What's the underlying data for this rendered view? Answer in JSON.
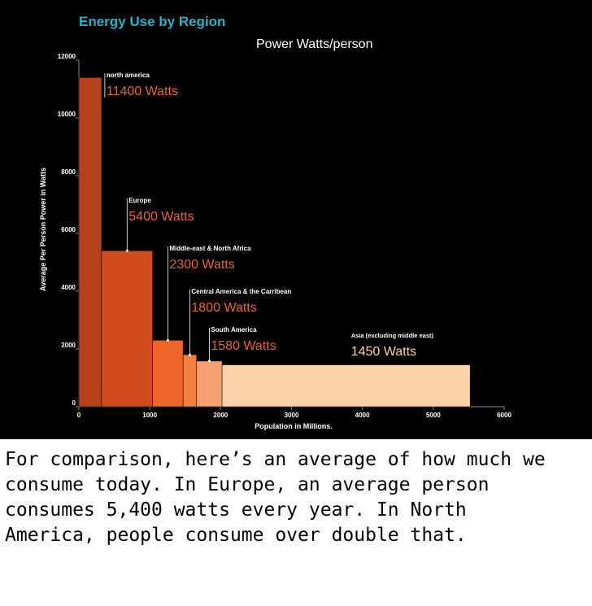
{
  "chart_data": {
    "type": "bar",
    "variant": "variable-width",
    "title": "Energy Use by Region",
    "subtitle": "Power Watts/person",
    "xlabel": "Population in Millions.",
    "ylabel": "Average Per Person Power in Watts",
    "xlim": [
      0,
      6000
    ],
    "ylim": [
      0,
      12000
    ],
    "xticks": [
      "0",
      "1000",
      "2000",
      "3000",
      "4000",
      "5000",
      "6000"
    ],
    "yticks": [
      "0",
      "2000",
      "4000",
      "6000",
      "8000",
      "10000",
      "12000"
    ],
    "grid": false,
    "regions": [
      {
        "name": "north america",
        "label": "11400 Watts",
        "value": 11400,
        "population": 320,
        "color": "#b5421a"
      },
      {
        "name": "Europe",
        "label": "5400 Watts",
        "value": 5400,
        "population": 720,
        "color": "#d04c1e"
      },
      {
        "name": "Middle-east & North Africa",
        "label": "2300 Watts",
        "value": 2300,
        "population": 430,
        "color": "#ee6429"
      },
      {
        "name": "Central America & the Carribean",
        "label": "1800 Watts",
        "value": 1800,
        "population": 190,
        "color": "#f2813f"
      },
      {
        "name": "South America",
        "label": "1580 Watts",
        "value": 1580,
        "population": 360,
        "color": "#f4a072"
      },
      {
        "name": "Asia (excluding middle east)",
        "label": "1450 Watts",
        "value": 1450,
        "population": 3500,
        "color": "#fcd2a8"
      }
    ]
  },
  "caption": {
    "lines": [
      "For comparison, here’s an average of how much we",
      "consume today. In Europe, an average person",
      "consumes 5,400 watts every year. In North",
      "America, people consume over double that."
    ]
  },
  "colors": {
    "background": "#000000",
    "title": "#2ab3c6",
    "value_label": "#e8643a",
    "value_label_light": "#fcd2a8"
  }
}
